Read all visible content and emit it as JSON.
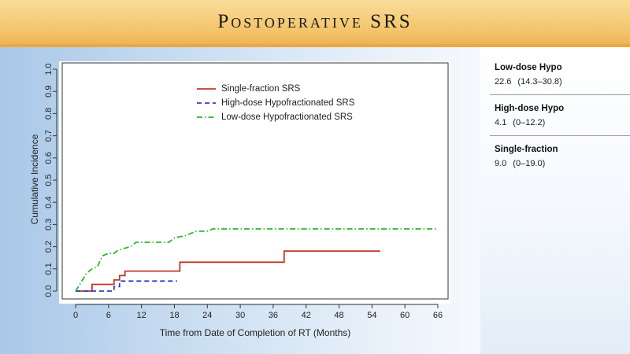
{
  "header": {
    "title": "Postoperative SRS"
  },
  "stats": [
    {
      "label": "Low-dose Hypo",
      "value": "22.6",
      "ci": "(14.3–30.8)"
    },
    {
      "label": "High-dose Hypo",
      "value": "4.1",
      "ci": "(0–12.2)"
    },
    {
      "label": "Single-fraction",
      "value": "9.0",
      "ci": "(0–19.0)"
    }
  ],
  "chart_data": {
    "type": "line",
    "step": true,
    "xlabel": "Time from Date of Completion of RT (Months)",
    "ylabel": "Cumulative Incidence",
    "xlim": [
      0,
      66
    ],
    "ylim": [
      0,
      1
    ],
    "xticks": [
      "0",
      "6",
      "12",
      "18",
      "24",
      "30",
      "36",
      "42",
      "48",
      "54",
      "60",
      "66"
    ],
    "yticks": [
      "0.0",
      "0.1",
      "0.2",
      "0.3",
      "0.4",
      "0.5",
      "0.6",
      "0.7",
      "0.8",
      "0.9",
      "1.0"
    ],
    "grid": false,
    "legend_position": "top-center",
    "series": [
      {
        "name": "Single-fraction SRS",
        "color": "#c0392b",
        "dash": "solid",
        "points": [
          [
            0,
            0
          ],
          [
            3,
            0
          ],
          [
            3,
            0.03
          ],
          [
            7,
            0.03
          ],
          [
            7,
            0.05
          ],
          [
            8,
            0.05
          ],
          [
            8,
            0.07
          ],
          [
            9,
            0.07
          ],
          [
            9,
            0.09
          ],
          [
            19,
            0.09
          ],
          [
            19,
            0.13
          ],
          [
            38,
            0.13
          ],
          [
            38,
            0.18
          ],
          [
            55.5,
            0.18
          ]
        ]
      },
      {
        "name": "High-dose Hypofractionated SRS",
        "color": "#2f3fc4",
        "dash": "dashed",
        "points": [
          [
            0,
            0
          ],
          [
            7,
            0
          ],
          [
            7,
            0.02
          ],
          [
            8,
            0.02
          ],
          [
            8,
            0.045
          ],
          [
            18.5,
            0.045
          ]
        ]
      },
      {
        "name": "Low-dose Hypofractionated SRS",
        "color": "#2db52d",
        "dash": "dotdash",
        "points": [
          [
            0,
            0
          ],
          [
            0.5,
            0.02
          ],
          [
            1,
            0.04
          ],
          [
            1.5,
            0.06
          ],
          [
            2,
            0.08
          ],
          [
            2.5,
            0.09
          ],
          [
            3,
            0.1
          ],
          [
            4,
            0.11
          ],
          [
            4.5,
            0.14
          ],
          [
            5,
            0.16
          ],
          [
            6,
            0.17
          ],
          [
            7,
            0.17
          ],
          [
            7.5,
            0.18
          ],
          [
            8.5,
            0.19
          ],
          [
            10,
            0.2
          ],
          [
            11,
            0.22
          ],
          [
            12,
            0.22
          ],
          [
            17,
            0.22
          ],
          [
            18,
            0.24
          ],
          [
            20,
            0.25
          ],
          [
            21,
            0.26
          ],
          [
            22,
            0.27
          ],
          [
            24,
            0.27
          ],
          [
            25,
            0.28
          ],
          [
            66,
            0.28
          ]
        ]
      }
    ]
  }
}
